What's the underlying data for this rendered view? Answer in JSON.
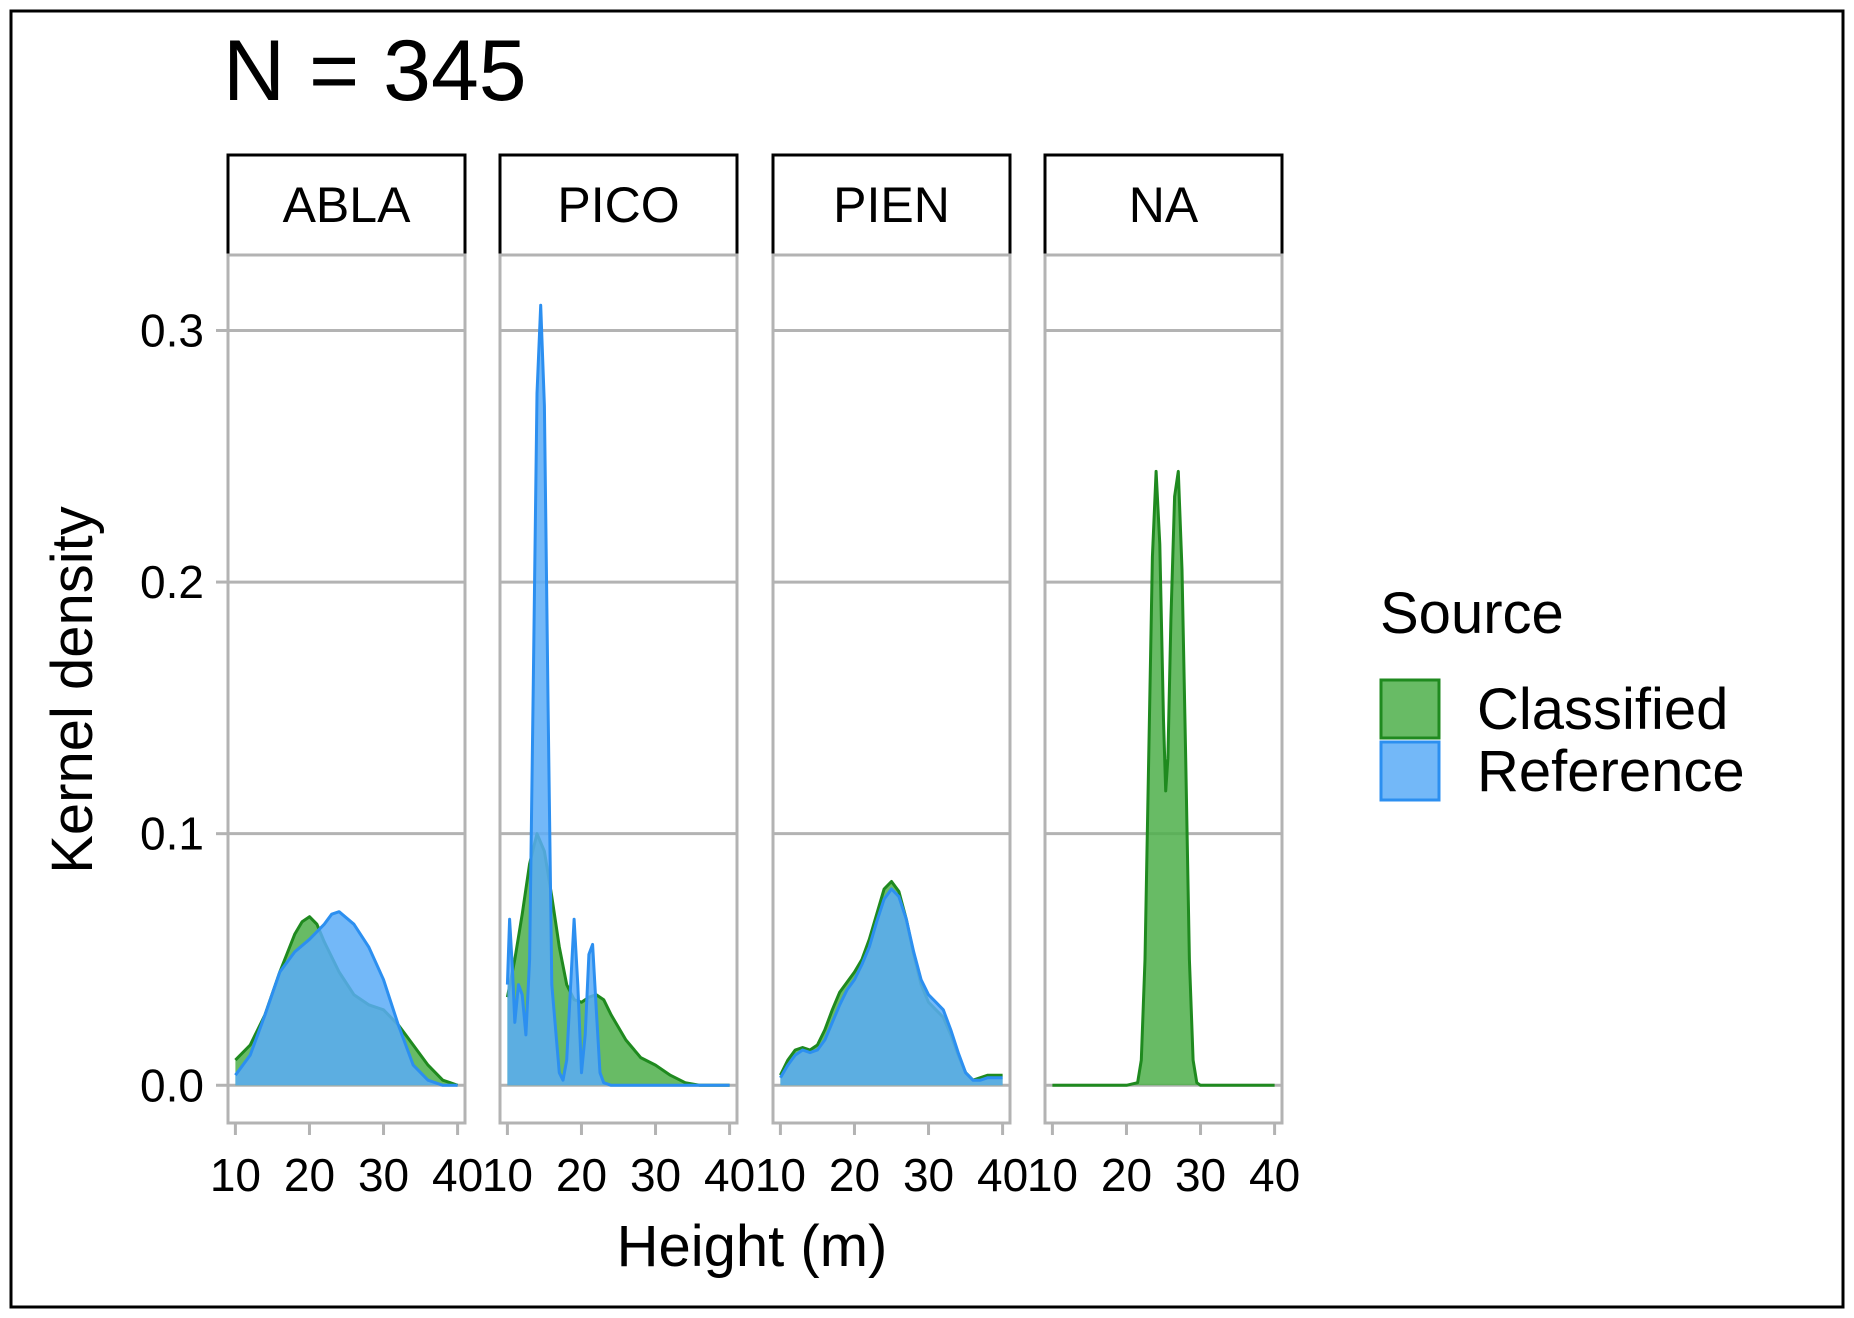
{
  "title": "N = 345",
  "chart_data": {
    "type": "area",
    "subtype": "faceted kernel density",
    "title": "N = 345",
    "xlabel": "Height (m)",
    "ylabel": "Kernel density",
    "xlim": [
      9,
      41
    ],
    "ylim": [
      -0.015,
      0.33
    ],
    "x_ticks": [
      10,
      20,
      30,
      40
    ],
    "x_tick_labels": [
      "10",
      "20",
      "30",
      "40"
    ],
    "y_ticks": [
      0.0,
      0.1,
      0.2,
      0.3
    ],
    "y_tick_labels": [
      "0.0",
      "0.1",
      "0.2",
      "0.3"
    ],
    "grid": "horizontal major lines",
    "legend": {
      "title": "Source",
      "position": "right",
      "entries": [
        {
          "label": "Classified",
          "fill": "#4daf4a",
          "stroke": "#1f8a1f"
        },
        {
          "label": "Reference",
          "fill": "#5aabf7",
          "stroke": "#2c8ff0"
        }
      ]
    },
    "colors": {
      "classified_fill": "#4daf4a",
      "classified_stroke": "#1f8a1f",
      "reference_fill": "#5aabf7",
      "reference_stroke": "#2c8ff0",
      "panel_border": "#b3b3b3",
      "gridline": "#b3b3b3"
    },
    "facets": [
      {
        "label": "ABLA",
        "series": [
          {
            "name": "Classified",
            "x": [
              10,
              12,
              14,
              16,
              18,
              19,
              20,
              21,
              22,
              24,
              26,
              28,
              30,
              32,
              34,
              36,
              38,
              39,
              40
            ],
            "y": [
              0.01,
              0.016,
              0.028,
              0.045,
              0.06,
              0.065,
              0.067,
              0.064,
              0.057,
              0.045,
              0.036,
              0.032,
              0.03,
              0.024,
              0.016,
              0.008,
              0.002,
              0.001,
              0.0
            ]
          },
          {
            "name": "Reference",
            "x": [
              10,
              12,
              14,
              16,
              18,
              20,
              22,
              23,
              24,
              26,
              28,
              30,
              32,
              34,
              36,
              38,
              39,
              40
            ],
            "y": [
              0.004,
              0.012,
              0.028,
              0.045,
              0.053,
              0.058,
              0.064,
              0.068,
              0.069,
              0.064,
              0.055,
              0.042,
              0.024,
              0.008,
              0.002,
              0.0,
              0.0,
              0.0
            ]
          }
        ]
      },
      {
        "label": "PICO",
        "series": [
          {
            "name": "Classified",
            "x": [
              10,
              11,
              12,
              13,
              14,
              15,
              16,
              17,
              18,
              19,
              20,
              21,
              22,
              23,
              24,
              26,
              28,
              30,
              32,
              34,
              36,
              38,
              40
            ],
            "y": [
              0.035,
              0.05,
              0.068,
              0.088,
              0.1,
              0.093,
              0.075,
              0.055,
              0.04,
              0.034,
              0.033,
              0.035,
              0.036,
              0.034,
              0.028,
              0.018,
              0.011,
              0.008,
              0.004,
              0.001,
              0.0,
              0.0,
              0.0
            ]
          },
          {
            "name": "Reference",
            "x": [
              10,
              10.3,
              10.7,
              11,
              11.5,
              12,
              12.5,
              13,
              13.5,
              14,
              14.5,
              15,
              15.5,
              16,
              17,
              17.5,
              18,
              18.5,
              19,
              19.5,
              20,
              20.5,
              21,
              21.5,
              22,
              22.5,
              23,
              24,
              26,
              30,
              40
            ],
            "y": [
              0.04,
              0.066,
              0.045,
              0.025,
              0.04,
              0.036,
              0.02,
              0.05,
              0.16,
              0.275,
              0.31,
              0.27,
              0.15,
              0.04,
              0.005,
              0.002,
              0.01,
              0.038,
              0.066,
              0.04,
              0.005,
              0.02,
              0.052,
              0.056,
              0.03,
              0.005,
              0.001,
              0.0,
              0.0,
              0.0,
              0.0
            ]
          }
        ]
      },
      {
        "label": "PIEN",
        "series": [
          {
            "name": "Classified",
            "x": [
              10,
              11,
              12,
              13,
              14,
              15,
              16,
              17,
              18,
              19,
              20,
              21,
              22,
              23,
              24,
              25,
              26,
              27,
              28,
              29,
              30,
              31,
              32,
              33,
              34,
              35,
              36,
              37,
              38,
              39,
              40
            ],
            "y": [
              0.004,
              0.01,
              0.014,
              0.015,
              0.014,
              0.016,
              0.022,
              0.03,
              0.037,
              0.041,
              0.045,
              0.05,
              0.058,
              0.068,
              0.078,
              0.081,
              0.077,
              0.066,
              0.052,
              0.04,
              0.033,
              0.03,
              0.027,
              0.02,
              0.012,
              0.005,
              0.002,
              0.003,
              0.004,
              0.004,
              0.004
            ]
          },
          {
            "name": "Reference",
            "x": [
              10,
              11,
              12,
              13,
              14,
              15,
              16,
              17,
              18,
              19,
              20,
              21,
              22,
              23,
              24,
              25,
              26,
              27,
              28,
              29,
              30,
              31,
              32,
              33,
              34,
              35,
              36,
              37,
              38,
              39,
              40
            ],
            "y": [
              0.003,
              0.008,
              0.012,
              0.014,
              0.013,
              0.014,
              0.018,
              0.025,
              0.032,
              0.038,
              0.042,
              0.048,
              0.055,
              0.065,
              0.074,
              0.078,
              0.075,
              0.066,
              0.053,
              0.042,
              0.036,
              0.033,
              0.03,
              0.022,
              0.013,
              0.005,
              0.002,
              0.002,
              0.003,
              0.003,
              0.003
            ]
          }
        ]
      },
      {
        "label": "NA",
        "series": [
          {
            "name": "Classified",
            "x": [
              10,
              20,
              21.5,
              22,
              22.5,
              23,
              23.5,
              24,
              24.5,
              25,
              25.3,
              25.6,
              26,
              26.5,
              27,
              27.5,
              28,
              28.5,
              29,
              29.5,
              30,
              40
            ],
            "y": [
              0.0,
              0.0,
              0.001,
              0.01,
              0.05,
              0.13,
              0.21,
              0.244,
              0.215,
              0.145,
              0.117,
              0.13,
              0.185,
              0.234,
              0.244,
              0.205,
              0.13,
              0.05,
              0.01,
              0.001,
              0.0,
              0.0
            ]
          }
        ]
      }
    ]
  }
}
